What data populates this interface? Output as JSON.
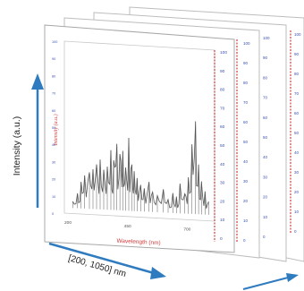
{
  "y_axis_title": "Intensity (a.u.)",
  "range_label": "[200, 1050] nm",
  "front_panel": {
    "inner_x_label": "Wavelength (nm)",
    "inner_y_label": "Intensity (a.u.)",
    "left_ticks": [
      "100",
      "90",
      "80",
      "70",
      "60",
      "50",
      "40",
      "30",
      "20",
      "10",
      "0"
    ],
    "right_ticks": [
      "100",
      "90",
      "80",
      "70",
      "60",
      "50",
      "40",
      "30",
      "20",
      "10",
      "0"
    ],
    "x_ticks": [
      "200",
      "450",
      "700"
    ]
  },
  "back_panel_ticks": [
    "100",
    "90",
    "80",
    "70",
    "60",
    "50",
    "40",
    "30",
    "20",
    "10",
    "0"
  ],
  "colors": {
    "arrow": "#2f7bbf",
    "red_axis": "#d03b3b",
    "tick_blue": "#3b4fb0",
    "spectrum": "#555555",
    "panel_border": "#bdbdbd"
  },
  "chart_data": {
    "type": "line",
    "xlabel": "Wavelength (nm)",
    "ylabel": "Intensity (a.u.)",
    "xlim": [
      200,
      800
    ],
    "ylim": [
      0,
      100
    ],
    "x_ticks": [
      200,
      450,
      700
    ],
    "peaks": [
      {
        "x": 220,
        "y": 4
      },
      {
        "x": 240,
        "y": 9
      },
      {
        "x": 255,
        "y": 16
      },
      {
        "x": 270,
        "y": 20
      },
      {
        "x": 290,
        "y": 22
      },
      {
        "x": 305,
        "y": 24
      },
      {
        "x": 320,
        "y": 27
      },
      {
        "x": 335,
        "y": 30
      },
      {
        "x": 350,
        "y": 24
      },
      {
        "x": 365,
        "y": 26
      },
      {
        "x": 380,
        "y": 36
      },
      {
        "x": 392,
        "y": 30
      },
      {
        "x": 405,
        "y": 40
      },
      {
        "x": 418,
        "y": 34
      },
      {
        "x": 430,
        "y": 36
      },
      {
        "x": 442,
        "y": 26
      },
      {
        "x": 455,
        "y": 44
      },
      {
        "x": 468,
        "y": 28
      },
      {
        "x": 478,
        "y": 24
      },
      {
        "x": 490,
        "y": 20
      },
      {
        "x": 505,
        "y": 16
      },
      {
        "x": 520,
        "y": 14
      },
      {
        "x": 540,
        "y": 18
      },
      {
        "x": 555,
        "y": 12
      },
      {
        "x": 575,
        "y": 10
      },
      {
        "x": 600,
        "y": 14
      },
      {
        "x": 620,
        "y": 8
      },
      {
        "x": 640,
        "y": 12
      },
      {
        "x": 655,
        "y": 10
      },
      {
        "x": 670,
        "y": 18
      },
      {
        "x": 690,
        "y": 12
      },
      {
        "x": 705,
        "y": 22
      },
      {
        "x": 720,
        "y": 42
      },
      {
        "x": 735,
        "y": 56
      },
      {
        "x": 748,
        "y": 30
      },
      {
        "x": 760,
        "y": 20
      },
      {
        "x": 775,
        "y": 14
      },
      {
        "x": 790,
        "y": 8
      }
    ]
  }
}
